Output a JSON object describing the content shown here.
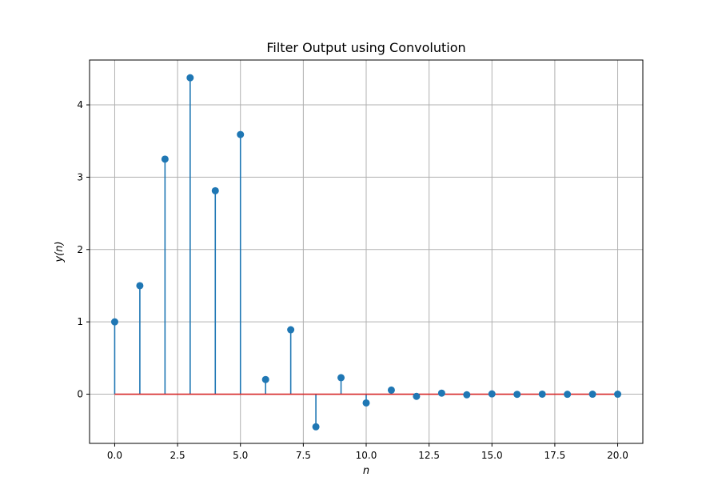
{
  "chart_data": {
    "type": "stem",
    "title": "Filter Output using Convolution",
    "xlabel": "n",
    "ylabel": "y(n)",
    "xlim": [
      -1,
      21
    ],
    "ylim": [
      -0.68,
      4.62
    ],
    "x_ticks": [
      0,
      2.5,
      5,
      7.5,
      10,
      12.5,
      15,
      17.5,
      20
    ],
    "x_tick_labels": [
      "0.0",
      "2.5",
      "5.0",
      "7.5",
      "10.0",
      "12.5",
      "15.0",
      "17.5",
      "20.0"
    ],
    "y_ticks": [
      0,
      1,
      2,
      3,
      4
    ],
    "y_tick_labels": [
      "0",
      "1",
      "2",
      "3",
      "4"
    ],
    "grid": true,
    "baseline": 0,
    "colors": {
      "stem": "#1f77b4",
      "baseline": "#d62728",
      "grid": "#b0b0b0"
    },
    "x": [
      0,
      1,
      2,
      3,
      4,
      5,
      6,
      7,
      8,
      9,
      10,
      11,
      12,
      13,
      14,
      15,
      16,
      17,
      18,
      19,
      20
    ],
    "values": [
      1.0,
      1.5,
      3.25,
      4.375,
      2.8125,
      3.59,
      0.203,
      0.891,
      -0.451,
      0.228,
      -0.121,
      0.057,
      -0.03,
      0.015,
      -0.008,
      0.004,
      -0.002,
      0.001,
      -0.001,
      0.0,
      0.0
    ]
  }
}
